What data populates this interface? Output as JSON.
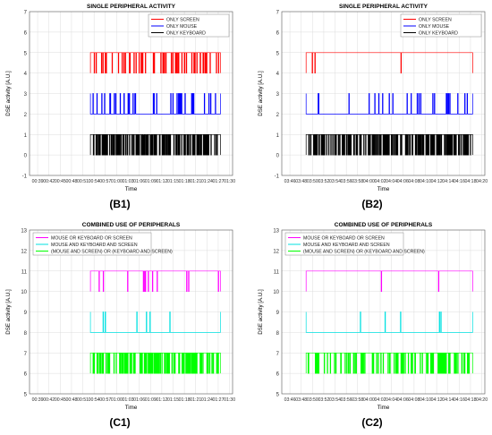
{
  "chart_data": [
    {
      "panel_label": "(B1)",
      "type": "line",
      "title": "SINGLE PERIPHERAL ACTIVITY",
      "xlabel": "Time",
      "ylabel": "DSE activity [A.U.]",
      "ylim": [
        -1,
        7
      ],
      "yticks": [
        -1,
        0,
        1,
        2,
        3,
        4,
        5,
        6,
        7
      ],
      "xticks": [
        "00:39",
        "00:42",
        "00:45",
        "00:48",
        "00:51",
        "00:54",
        "00:57",
        "01:00",
        "01:03",
        "01:06",
        "01:09",
        "01:12",
        "01:15",
        "01:18",
        "01:21",
        "01:24",
        "01:27",
        "01:30"
      ],
      "grid": true,
      "legend_position": "top-right",
      "series": [
        {
          "name": "ONLY SCREEN",
          "color": "#ff0000",
          "low": 4,
          "high": 5,
          "x_range": [
            0.3,
            0.94
          ],
          "rest": "high",
          "density": "sparse",
          "count": 55
        },
        {
          "name": "ONLY MOUSE",
          "color": "#0000ff",
          "low": 2,
          "high": 3,
          "x_range": [
            0.3,
            0.94
          ],
          "rest": "low",
          "density": "sparse",
          "count": 40
        },
        {
          "name": "ONLY KEYBOARD",
          "color": "#000000",
          "low": 0,
          "high": 1,
          "x_range": [
            0.3,
            0.94
          ],
          "rest": "high",
          "density": "dense",
          "count": 140
        }
      ]
    },
    {
      "panel_label": "(B2)",
      "type": "line",
      "title": "SINGLE PERIPHERAL ACTIVITY",
      "xlabel": "Time",
      "ylabel": "DSE activity [A.U.]",
      "ylim": [
        -1,
        7
      ],
      "yticks": [
        -1,
        0,
        1,
        2,
        3,
        4,
        5,
        6,
        7
      ],
      "xticks": [
        "03:46",
        "03:48",
        "03:50",
        "03:52",
        "03:54",
        "03:56",
        "03:58",
        "04:00",
        "04:02",
        "04:04",
        "04:06",
        "04:08",
        "04:10",
        "04:12",
        "04:14",
        "04:16",
        "04:18",
        "04:20"
      ],
      "grid": true,
      "legend_position": "top-right",
      "series": [
        {
          "name": "ONLY SCREEN",
          "color": "#ff0000",
          "low": 4,
          "high": 5,
          "x_range": [
            0.12,
            0.94
          ],
          "rest": "high",
          "density": "few",
          "count": 3
        },
        {
          "name": "ONLY MOUSE",
          "color": "#0000ff",
          "low": 2,
          "high": 3,
          "x_range": [
            0.12,
            0.94
          ],
          "rest": "low",
          "density": "sparse",
          "count": 24
        },
        {
          "name": "ONLY KEYBOARD",
          "color": "#000000",
          "low": 0,
          "high": 1,
          "x_range": [
            0.12,
            0.94
          ],
          "rest": "high",
          "density": "dense",
          "count": 190
        }
      ]
    },
    {
      "panel_label": "(C1)",
      "type": "line",
      "title": "COMBINED USE OF PERIPHERALS",
      "xlabel": "Time",
      "ylabel": "DSE activity [A.U.]",
      "ylim": [
        5,
        13
      ],
      "yticks": [
        5,
        6,
        7,
        8,
        9,
        10,
        11,
        12,
        13
      ],
      "xticks": [
        "00:39",
        "00:42",
        "00:45",
        "00:48",
        "00:51",
        "00:54",
        "00:57",
        "01:00",
        "01:03",
        "01:06",
        "01:09",
        "01:12",
        "01:15",
        "01:18",
        "01:21",
        "01:24",
        "01:27",
        "01:30"
      ],
      "grid": true,
      "legend_position": "top-left",
      "series": [
        {
          "name": "MOUSE OR KEYBOARD OR SCREEN",
          "color": "#ff00ff",
          "low": 10,
          "high": 11,
          "x_range": [
            0.3,
            0.94
          ],
          "rest": "high",
          "density": "few",
          "count": 12
        },
        {
          "name": "MOUSE AND KEYBOARD AND SCREEN",
          "color": "#00e0e0",
          "low": 8,
          "high": 9,
          "x_range": [
            0.3,
            0.94
          ],
          "rest": "low",
          "density": "few",
          "count": 7
        },
        {
          "name": "(MOUSE AND SCREEN) OR (KEYBOARD AND SCREEN)",
          "color": "#00ff00",
          "low": 6,
          "high": 7,
          "x_range": [
            0.3,
            0.94
          ],
          "rest": "high",
          "density": "dense",
          "count": 140
        }
      ]
    },
    {
      "panel_label": "(C2)",
      "type": "line",
      "title": "COMBINED USE OF PERIPHERALS",
      "xlabel": "Time",
      "ylabel": "DSE activity [A.U.]",
      "ylim": [
        5,
        13
      ],
      "yticks": [
        5,
        6,
        7,
        8,
        9,
        10,
        11,
        12,
        13
      ],
      "xticks": [
        "03:46",
        "03:48",
        "03:50",
        "03:52",
        "03:54",
        "03:56",
        "03:58",
        "04:00",
        "04:02",
        "04:04",
        "04:06",
        "04:08",
        "04:10",
        "04:12",
        "04:14",
        "04:16",
        "04:18",
        "04:20"
      ],
      "grid": true,
      "legend_position": "top-left",
      "series": [
        {
          "name": "MOUSE OR KEYBOARD OR SCREEN",
          "color": "#ff00ff",
          "low": 10,
          "high": 11,
          "x_range": [
            0.12,
            0.94
          ],
          "rest": "high",
          "density": "few",
          "count": 2
        },
        {
          "name": "MOUSE AND KEYBOARD AND SCREEN",
          "color": "#00e0e0",
          "low": 8,
          "high": 9,
          "x_range": [
            0.12,
            0.94
          ],
          "rest": "low",
          "density": "few",
          "count": 5
        },
        {
          "name": "(MOUSE AND SCREEN) OR (KEYBOARD AND SCREEN)",
          "color": "#00ff00",
          "low": 6,
          "high": 7,
          "x_range": [
            0.12,
            0.94
          ],
          "rest": "high",
          "density": "dense",
          "count": 110
        }
      ]
    }
  ]
}
